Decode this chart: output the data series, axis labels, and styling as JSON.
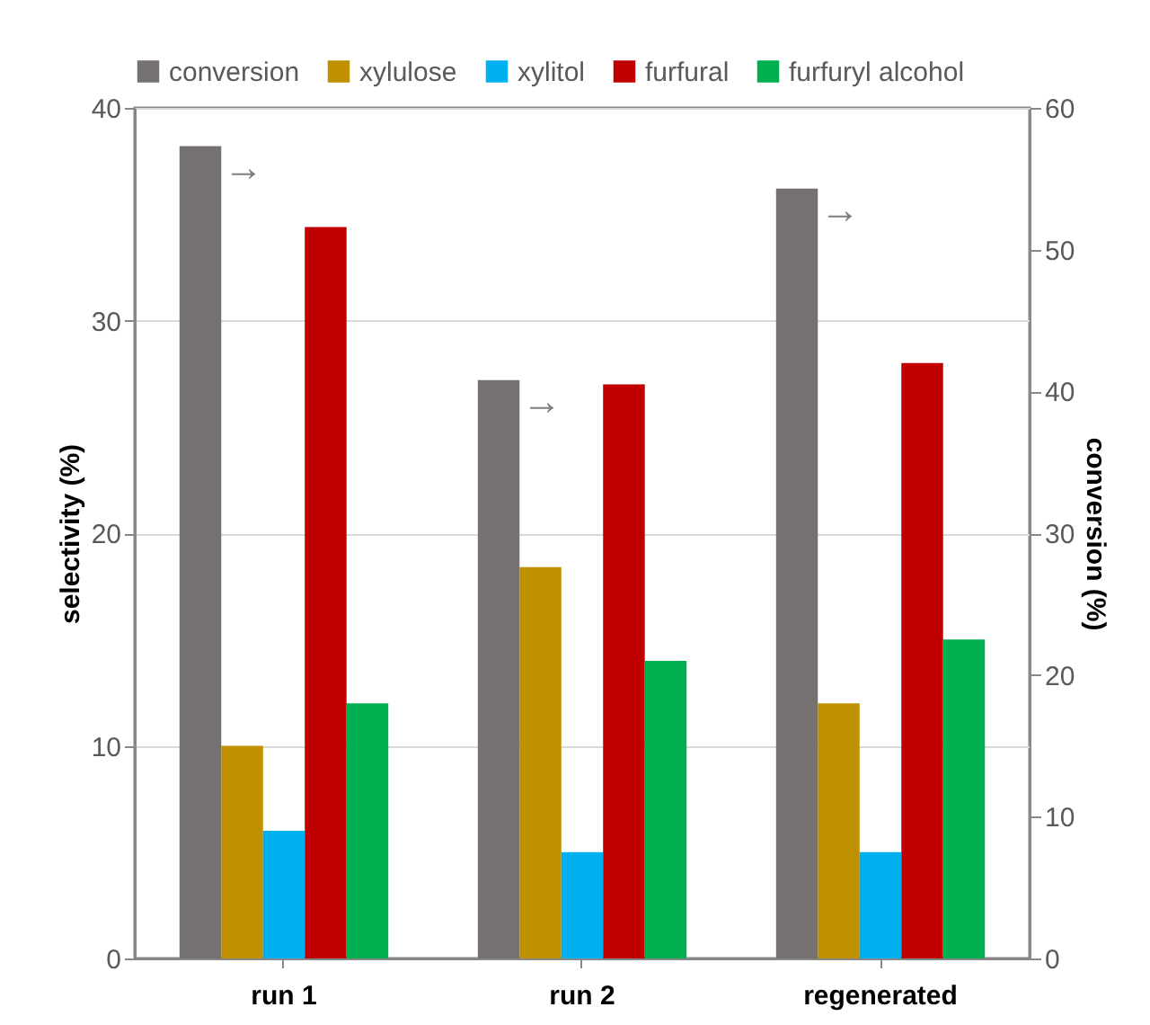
{
  "chart_data": {
    "type": "bar",
    "categories": [
      "run 1",
      "run 2",
      "regenerated"
    ],
    "ylabel": "selectivity (%)",
    "y2label": "conversion (%)",
    "ylim": [
      0,
      40
    ],
    "yticks": [
      0,
      10,
      20,
      30,
      40
    ],
    "y2lim": [
      0,
      60
    ],
    "y2ticks": [
      0,
      10,
      20,
      30,
      40,
      50,
      60
    ],
    "grid": "y",
    "legend": "top",
    "series": [
      {
        "name": "conversion",
        "color": "#767171",
        "axis": "y2",
        "values": [
          57.3,
          40.8,
          54.3
        ]
      },
      {
        "name": "xylulose",
        "color": "#bf9000",
        "values": [
          10,
          18.4,
          12
        ]
      },
      {
        "name": "xylitol",
        "color": "#00b0f0",
        "values": [
          6,
          5,
          5
        ]
      },
      {
        "name": "furfural",
        "color": "#c00000",
        "values": [
          34.4,
          27.0,
          28.0
        ]
      },
      {
        "name": "furfuryl alcohol",
        "color": "#00b050",
        "values": [
          12,
          14,
          15
        ]
      }
    ],
    "annotations": [
      "→",
      "→",
      "→"
    ]
  }
}
